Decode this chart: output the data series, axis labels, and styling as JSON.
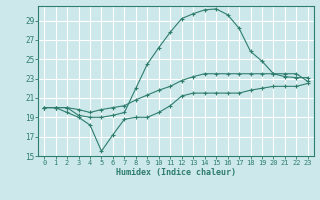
{
  "title": "",
  "xlabel": "Humidex (Indice chaleur)",
  "background_color": "#cce8ea",
  "grid_color": "#ffffff",
  "line_color": "#2e7d6e",
  "xlim": [
    -0.5,
    23.5
  ],
  "ylim": [
    15,
    30.5
  ],
  "x_ticks": [
    0,
    1,
    2,
    3,
    4,
    5,
    6,
    7,
    8,
    9,
    10,
    11,
    12,
    13,
    14,
    15,
    16,
    17,
    18,
    19,
    20,
    21,
    22,
    23
  ],
  "y_ticks": [
    15,
    17,
    19,
    21,
    23,
    25,
    27,
    29
  ],
  "hours": [
    0,
    1,
    2,
    3,
    4,
    5,
    6,
    7,
    8,
    9,
    10,
    11,
    12,
    13,
    14,
    15,
    16,
    17,
    18,
    19,
    20,
    21,
    22,
    23
  ],
  "max_vals": [
    20.0,
    20.0,
    20.0,
    19.2,
    19.0,
    19.0,
    19.2,
    19.5,
    22.0,
    24.5,
    26.2,
    27.8,
    29.2,
    29.7,
    30.1,
    30.2,
    29.6,
    28.2,
    25.8,
    24.8,
    23.5,
    23.2,
    23.1,
    23.1
  ],
  "mean_vals": [
    20.0,
    20.0,
    20.0,
    19.8,
    19.5,
    19.8,
    20.0,
    20.2,
    20.8,
    21.3,
    21.8,
    22.2,
    22.8,
    23.2,
    23.5,
    23.5,
    23.5,
    23.5,
    23.5,
    23.5,
    23.5,
    23.5,
    23.5,
    22.7
  ],
  "min_vals": [
    20.0,
    20.0,
    19.5,
    19.0,
    18.2,
    15.5,
    17.2,
    18.8,
    19.0,
    19.0,
    19.5,
    20.2,
    21.2,
    21.5,
    21.5,
    21.5,
    21.5,
    21.5,
    21.8,
    22.0,
    22.2,
    22.2,
    22.2,
    22.5
  ]
}
